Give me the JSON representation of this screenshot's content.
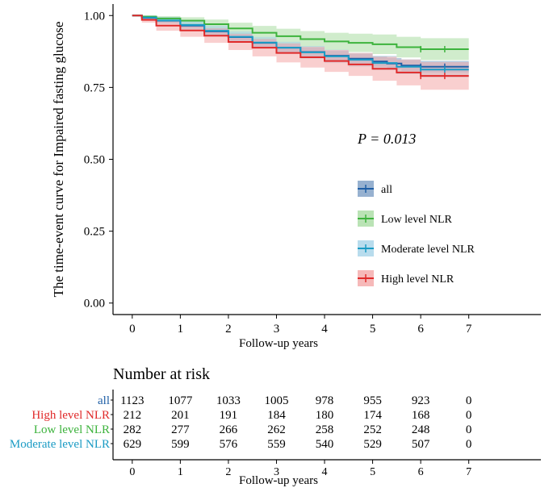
{
  "chart_data": {
    "type": "line",
    "subtype": "kaplan-meier",
    "ylabel": "The time-event curve for Impaired fasting glucose",
    "xlabel": "Follow-up years",
    "xlim": [
      -0.4,
      8.5
    ],
    "ylim": [
      -0.04,
      1.04
    ],
    "x_ticks": [
      0,
      1,
      2,
      3,
      4,
      5,
      6,
      7
    ],
    "x_tick_labels": [
      "0",
      "1",
      "2",
      "3",
      "4",
      "5",
      "6",
      "7"
    ],
    "y_ticks": [
      0,
      0.25,
      0.5,
      0.75,
      1
    ],
    "y_tick_labels": [
      "0.00",
      "0.25",
      "0.50",
      "0.75",
      "1.00"
    ],
    "grid": false,
    "annotation": "P = 0.013",
    "legend_position": "right-center",
    "series": [
      {
        "name": "all",
        "color": "#1f5fa6",
        "band_color": "#7d9ec4",
        "x": [
          0,
          0.2,
          0.5,
          1,
          1.5,
          2,
          2.5,
          3,
          3.5,
          4,
          4.5,
          5,
          5.3,
          5.6,
          6,
          7
        ],
        "y": [
          1,
          0.992,
          0.982,
          0.965,
          0.945,
          0.925,
          0.905,
          0.888,
          0.873,
          0.86,
          0.85,
          0.84,
          0.833,
          0.826,
          0.822,
          0.822
        ],
        "ci_width": [
          0,
          0.005,
          0.008,
          0.01,
          0.012,
          0.013,
          0.014,
          0.015,
          0.016,
          0.017,
          0.017,
          0.018,
          0.019,
          0.019,
          0.02,
          0.02
        ]
      },
      {
        "name": "Low level NLR",
        "color": "#3db33d",
        "band_color": "#a9dca3",
        "x": [
          0,
          0.2,
          0.5,
          1,
          1.5,
          2,
          2.5,
          3,
          3.5,
          4,
          4.5,
          5,
          5.5,
          6,
          7
        ],
        "y": [
          1,
          0.996,
          0.99,
          0.982,
          0.97,
          0.955,
          0.94,
          0.928,
          0.918,
          0.91,
          0.905,
          0.9,
          0.89,
          0.883,
          0.883
        ],
        "ci_width": [
          0,
          0.004,
          0.008,
          0.012,
          0.016,
          0.02,
          0.024,
          0.026,
          0.028,
          0.03,
          0.032,
          0.034,
          0.036,
          0.038,
          0.038
        ]
      },
      {
        "name": "Moderate level NLR",
        "color": "#1a9bc4",
        "band_color": "#a6d3e8",
        "x": [
          0,
          0.2,
          0.5,
          1,
          1.5,
          2,
          2.5,
          3,
          3.5,
          4,
          4.5,
          5,
          5.5,
          6,
          7
        ],
        "y": [
          1,
          0.993,
          0.983,
          0.967,
          0.947,
          0.926,
          0.906,
          0.888,
          0.872,
          0.858,
          0.846,
          0.835,
          0.822,
          0.812,
          0.812
        ],
        "ci_width": [
          0,
          0.007,
          0.012,
          0.016,
          0.018,
          0.019,
          0.02,
          0.021,
          0.022,
          0.023,
          0.024,
          0.025,
          0.026,
          0.027,
          0.027
        ]
      },
      {
        "name": "High level NLR",
        "color": "#e02a2a",
        "band_color": "#f4a8a8",
        "x": [
          0,
          0.2,
          0.5,
          1,
          1.5,
          2,
          2.5,
          3,
          3.5,
          4,
          4.5,
          5,
          5.5,
          6,
          7
        ],
        "y": [
          1,
          0.985,
          0.965,
          0.948,
          0.93,
          0.908,
          0.888,
          0.87,
          0.855,
          0.842,
          0.83,
          0.815,
          0.802,
          0.79,
          0.79
        ],
        "ci_width": [
          0,
          0.01,
          0.018,
          0.022,
          0.025,
          0.028,
          0.03,
          0.033,
          0.036,
          0.038,
          0.04,
          0.042,
          0.045,
          0.048,
          0.048
        ]
      }
    ]
  },
  "risk_table": {
    "title": "Number at risk",
    "xlabel": "Follow-up years",
    "x_ticks": [
      "0",
      "1",
      "2",
      "3",
      "4",
      "5",
      "6",
      "7"
    ],
    "rows": [
      {
        "name": "all",
        "color": "#1f5fa6",
        "values": [
          "1123",
          "1077",
          "1033",
          "1005",
          "978",
          "955",
          "923",
          "0"
        ]
      },
      {
        "name": "High level NLR",
        "color": "#e02a2a",
        "values": [
          "212",
          "201",
          "191",
          "184",
          "180",
          "174",
          "168",
          "0"
        ]
      },
      {
        "name": "Low level NLR",
        "color": "#3db33d",
        "values": [
          "282",
          "277",
          "266",
          "262",
          "258",
          "252",
          "248",
          "0"
        ]
      },
      {
        "name": "Moderate level NLR",
        "color": "#1a9bc4",
        "values": [
          "629",
          "599",
          "576",
          "559",
          "540",
          "529",
          "507",
          "0"
        ]
      }
    ]
  }
}
